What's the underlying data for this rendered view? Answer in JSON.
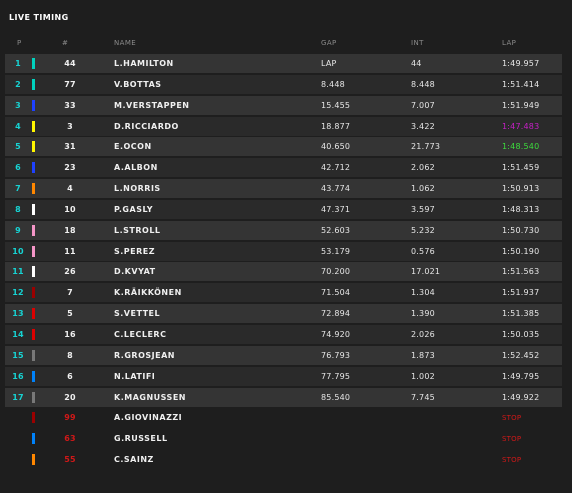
{
  "title": "LIVE TIMING",
  "columns": {
    "pos": "P",
    "num": "#",
    "name": "NAME",
    "gap": "GAP",
    "int": "INT",
    "lap": "LAP"
  },
  "team_colors": {
    "mercedes": "#00d2be",
    "red_bull": "#1e41ff",
    "renault": "#fff500",
    "mclaren": "#ff8700",
    "alphatauri": "#ffffff",
    "racing_point": "#f596c8",
    "alfa_romeo": "#9b0000",
    "ferrari": "#dc0000",
    "haas": "#787878",
    "williams": "#0082fa"
  },
  "rows": [
    {
      "pos": "1",
      "num": "44",
      "name": "L.HAMILTON",
      "gap": "LAP",
      "int": "44",
      "lap": "1:49.957",
      "team": "mercedes",
      "lap_status": "normal"
    },
    {
      "pos": "2",
      "num": "77",
      "name": "V.BOTTAS",
      "gap": "8.448",
      "int": "8.448",
      "lap": "1:51.414",
      "team": "mercedes",
      "lap_status": "normal"
    },
    {
      "pos": "3",
      "num": "33",
      "name": "M.VERSTAPPEN",
      "gap": "15.455",
      "int": "7.007",
      "lap": "1:51.949",
      "team": "red_bull",
      "lap_status": "normal"
    },
    {
      "pos": "4",
      "num": "3",
      "name": "D.RICCIARDO",
      "gap": "18.877",
      "int": "3.422",
      "lap": "1:47.483",
      "team": "renault",
      "lap_status": "purple"
    },
    {
      "pos": "5",
      "num": "31",
      "name": "E.OCON",
      "gap": "40.650",
      "int": "21.773",
      "lap": "1:48.540",
      "team": "renault",
      "lap_status": "green"
    },
    {
      "pos": "6",
      "num": "23",
      "name": "A.ALBON",
      "gap": "42.712",
      "int": "2.062",
      "lap": "1:51.459",
      "team": "red_bull",
      "lap_status": "normal"
    },
    {
      "pos": "7",
      "num": "4",
      "name": "L.NORRIS",
      "gap": "43.774",
      "int": "1.062",
      "lap": "1:50.913",
      "team": "mclaren",
      "lap_status": "normal"
    },
    {
      "pos": "8",
      "num": "10",
      "name": "P.GASLY",
      "gap": "47.371",
      "int": "3.597",
      "lap": "1:48.313",
      "team": "alphatauri",
      "lap_status": "normal"
    },
    {
      "pos": "9",
      "num": "18",
      "name": "L.STROLL",
      "gap": "52.603",
      "int": "5.232",
      "lap": "1:50.730",
      "team": "racing_point",
      "lap_status": "normal"
    },
    {
      "pos": "10",
      "num": "11",
      "name": "S.PEREZ",
      "gap": "53.179",
      "int": "0.576",
      "lap": "1:50.190",
      "team": "racing_point",
      "lap_status": "normal"
    },
    {
      "pos": "11",
      "num": "26",
      "name": "D.KVYAT",
      "gap": "70.200",
      "int": "17.021",
      "lap": "1:51.563",
      "team": "alphatauri",
      "lap_status": "normal"
    },
    {
      "pos": "12",
      "num": "7",
      "name": "K.RÄIKKÖNEN",
      "gap": "71.504",
      "int": "1.304",
      "lap": "1:51.937",
      "team": "alfa_romeo",
      "lap_status": "normal"
    },
    {
      "pos": "13",
      "num": "5",
      "name": "S.VETTEL",
      "gap": "72.894",
      "int": "1.390",
      "lap": "1:51.385",
      "team": "ferrari",
      "lap_status": "normal"
    },
    {
      "pos": "14",
      "num": "16",
      "name": "C.LECLERC",
      "gap": "74.920",
      "int": "2.026",
      "lap": "1:50.035",
      "team": "ferrari",
      "lap_status": "normal"
    },
    {
      "pos": "15",
      "num": "8",
      "name": "R.GROSJEAN",
      "gap": "76.793",
      "int": "1.873",
      "lap": "1:52.452",
      "team": "haas",
      "lap_status": "normal"
    },
    {
      "pos": "16",
      "num": "6",
      "name": "N.LATIFI",
      "gap": "77.795",
      "int": "1.002",
      "lap": "1:49.795",
      "team": "williams",
      "lap_status": "normal"
    },
    {
      "pos": "17",
      "num": "20",
      "name": "K.MAGNUSSEN",
      "gap": "85.540",
      "int": "7.745",
      "lap": "1:49.922",
      "team": "haas",
      "lap_status": "normal"
    },
    {
      "pos": "",
      "num": "99",
      "name": "A.GIOVINAZZI",
      "gap": "",
      "int": "",
      "lap": "STOP",
      "team": "alfa_romeo",
      "lap_status": "stop"
    },
    {
      "pos": "",
      "num": "63",
      "name": "G.RUSSELL",
      "gap": "",
      "int": "",
      "lap": "STOP",
      "team": "williams",
      "lap_status": "stop"
    },
    {
      "pos": "",
      "num": "55",
      "name": "C.SAINZ",
      "gap": "",
      "int": "",
      "lap": "STOP",
      "team": "mclaren",
      "lap_status": "stop"
    }
  ]
}
